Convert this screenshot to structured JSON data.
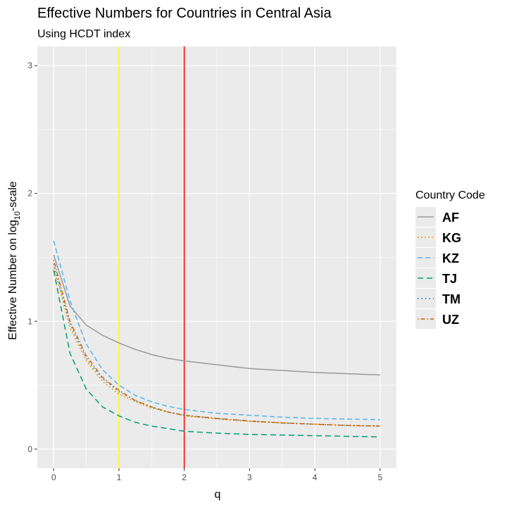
{
  "chart_data": {
    "type": "line",
    "title": "Effective Numbers for Countries in Central Asia",
    "subtitle": "Using HCDT index",
    "xlabel": "q",
    "ylabel": "Effective Number on log",
    "ylabel_sub": "10",
    "ylabel_suffix": "-scale",
    "xlim": [
      -0.25,
      5.25
    ],
    "ylim": [
      -0.15,
      3.15
    ],
    "x_ticks": [
      0,
      1,
      2,
      3,
      4,
      5
    ],
    "y_ticks": [
      0,
      1,
      2,
      3
    ],
    "x_tick_labels": [
      "0",
      "1",
      "2",
      "3",
      "4",
      "5"
    ],
    "y_tick_labels": [
      "0",
      "1",
      "2",
      "3"
    ],
    "grid": true,
    "reference_lines": [
      {
        "x": 1,
        "color": "#ffff00"
      },
      {
        "x": 2,
        "color": "#ff0000"
      }
    ],
    "legend": {
      "title": "Country Code",
      "position": "right"
    },
    "x": [
      0,
      0.25,
      0.5,
      0.75,
      1,
      1.25,
      1.5,
      1.75,
      2,
      2.5,
      3,
      3.5,
      4,
      4.5,
      5
    ],
    "series": [
      {
        "name": "AF",
        "color": "#999999",
        "dash": "solid",
        "values": [
          1.52,
          1.12,
          0.97,
          0.89,
          0.83,
          0.78,
          0.74,
          0.71,
          0.69,
          0.66,
          0.63,
          0.615,
          0.6,
          0.59,
          0.58
        ]
      },
      {
        "name": "KG",
        "color": "#E69F00",
        "dash": "dotted",
        "values": [
          1.42,
          0.95,
          0.69,
          0.53,
          0.43,
          0.37,
          0.32,
          0.29,
          0.26,
          0.235,
          0.215,
          0.205,
          0.195,
          0.185,
          0.18
        ]
      },
      {
        "name": "KZ",
        "color": "#56B4E9",
        "dash": "dashed",
        "values": [
          1.63,
          1.16,
          0.82,
          0.62,
          0.5,
          0.42,
          0.37,
          0.335,
          0.31,
          0.28,
          0.265,
          0.25,
          0.24,
          0.235,
          0.23
        ]
      },
      {
        "name": "TJ",
        "color": "#009E73",
        "dash": "longdash",
        "values": [
          1.4,
          0.75,
          0.47,
          0.33,
          0.26,
          0.21,
          0.18,
          0.16,
          0.14,
          0.125,
          0.115,
          0.11,
          0.105,
          0.1,
          0.095
        ]
      },
      {
        "name": "TM",
        "color": "#0072B2",
        "dash": "dotdense",
        "values": [
          1.45,
          0.98,
          0.71,
          0.55,
          0.45,
          0.38,
          0.33,
          0.29,
          0.265,
          0.24,
          0.22,
          0.205,
          0.195,
          0.185,
          0.18
        ]
      },
      {
        "name": "UZ",
        "color": "#D55E00",
        "dash": "dotdash",
        "values": [
          1.48,
          1.0,
          0.73,
          0.56,
          0.46,
          0.38,
          0.33,
          0.29,
          0.265,
          0.24,
          0.22,
          0.205,
          0.195,
          0.185,
          0.18
        ]
      }
    ]
  }
}
